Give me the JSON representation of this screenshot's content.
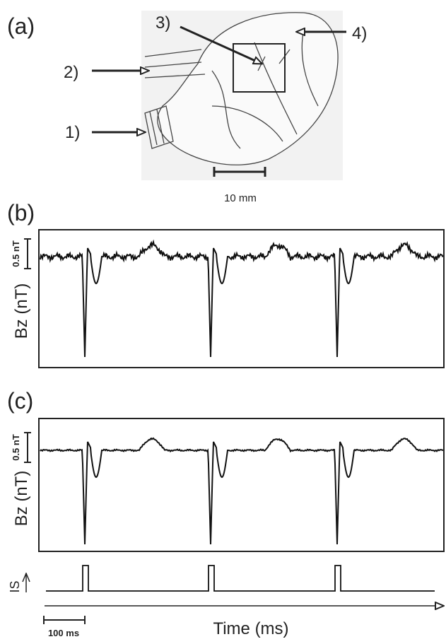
{
  "panel_a": {
    "label": "(a)",
    "arrows": [
      "1)",
      "2)",
      "3)",
      "4)"
    ],
    "scale_bar": "10 mm"
  },
  "panel_b": {
    "label": "(b)",
    "scale_bar": "0.5 nT",
    "y_label": "Bz (nT)"
  },
  "panel_c": {
    "label": "(c)",
    "scale_bar": "0.5 nT",
    "y_label": "Bz (nT)",
    "stimulus_label": "IS",
    "time_scale_bar": "100 ms",
    "x_label": "Time (ms)"
  }
}
